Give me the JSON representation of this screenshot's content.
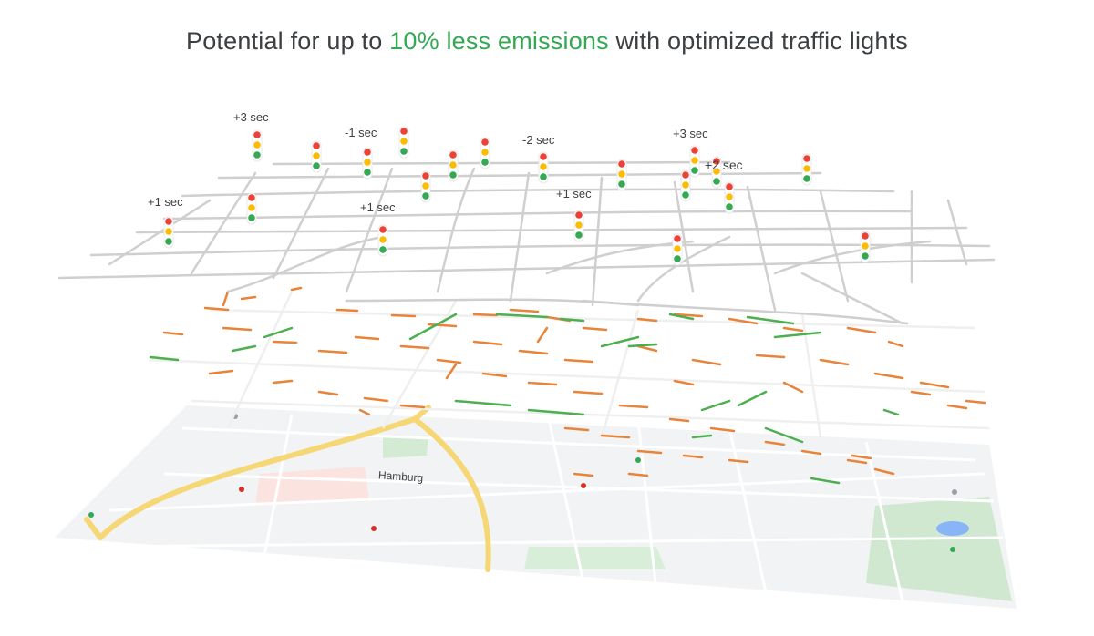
{
  "headline": {
    "prefix": "Potential for up to ",
    "highlight": "10% less emissions",
    "suffix": " with optimized traffic lights",
    "highlight_color": "#34a853"
  },
  "traffic_light_labels": [
    "+3 sec",
    "-1 sec",
    "-2 sec",
    "+3 sec",
    "+2 sec",
    "+1 sec",
    "+1 sec",
    "+1 sec"
  ],
  "map": {
    "city_label": "Hamburg"
  },
  "colors": {
    "red": "#ea4335",
    "yellow": "#fbbc04",
    "green": "#34a853",
    "orange_segment": "#e8843a",
    "green_segment": "#4caf50",
    "road_gray": "#cfcfcf"
  }
}
